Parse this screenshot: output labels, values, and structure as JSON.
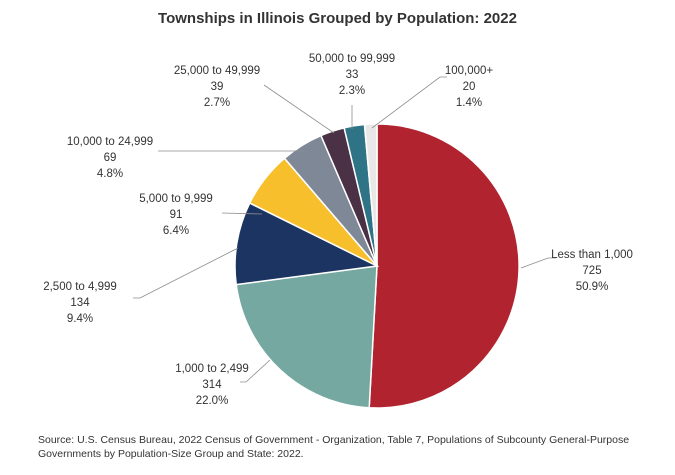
{
  "chart_data": {
    "type": "pie",
    "title": "Townships in Illinois Grouped by Population: 2022",
    "slices": [
      {
        "label": "Less than 1,000",
        "count": "725",
        "percent": "50.9%",
        "value": 725,
        "color": "#b0232f"
      },
      {
        "label": "1,000 to 2,499",
        "count": "314",
        "percent": "22.0%",
        "value": 314,
        "color": "#75a8a0"
      },
      {
        "label": "2,500 to 4,999",
        "count": "134",
        "percent": "9.4%",
        "value": 134,
        "color": "#1b3461"
      },
      {
        "label": "5,000 to 9,999",
        "count": "91",
        "percent": "6.4%",
        "value": 91,
        "color": "#f7bf2c"
      },
      {
        "label": "10,000 to 24,999",
        "count": "69",
        "percent": "4.8%",
        "value": 69,
        "color": "#7f8897"
      },
      {
        "label": "25,000 to 49,999",
        "count": "39",
        "percent": "2.7%",
        "value": 39,
        "color": "#4a3145"
      },
      {
        "label": "50,000 to 99,999",
        "count": "33",
        "percent": "2.3%",
        "value": 33,
        "color": "#2f7486"
      },
      {
        "label": "100,000+",
        "count": "20",
        "percent": "1.4%",
        "value": 20,
        "color": "#e8e8e8"
      }
    ],
    "source": "Source: U.S. Census Bureau, 2022 Census of Government - Organization, Table 7, Populations of Subcounty General-Purpose Governments by Population-Size Group and State: 2022."
  }
}
